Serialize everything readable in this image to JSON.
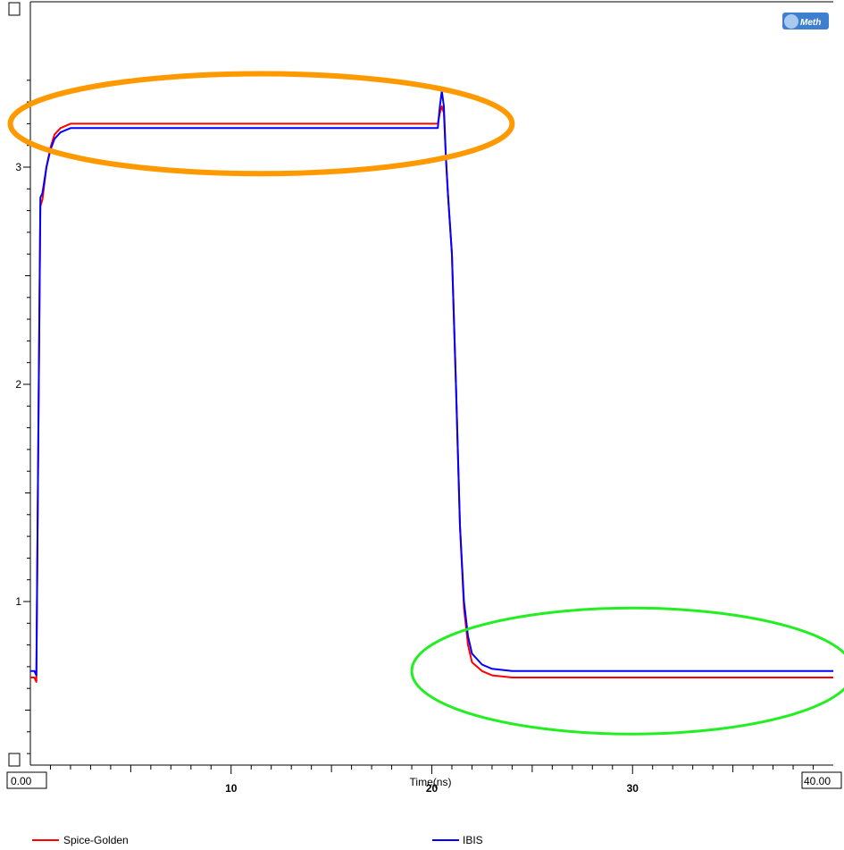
{
  "chart_data": {
    "type": "line",
    "title": "",
    "xlabel": "Time(ns)",
    "ylabel": "",
    "xlim": [
      0,
      40
    ],
    "ylim": [
      0.0,
      3.5
    ],
    "x_ticks": [
      10,
      20,
      30
    ],
    "y_ticks": [
      1,
      2,
      3
    ],
    "x_range_start": "0.00",
    "x_range_end": "40.00",
    "grid": false,
    "legend_position": "bottom",
    "series": [
      {
        "name": "Spice-Golden",
        "color": "#ff0000",
        "x": [
          0,
          0.2,
          0.3,
          0.4,
          0.5,
          0.6,
          0.8,
          1.0,
          1.2,
          1.5,
          2.0,
          3.0,
          10.0,
          20.3,
          20.4,
          20.5,
          20.6,
          20.7,
          20.8,
          21.0,
          21.2,
          21.4,
          21.6,
          21.8,
          22.0,
          22.5,
          23.0,
          24.0,
          30.0,
          40.0
        ],
        "values": [
          0.65,
          0.65,
          0.63,
          1.8,
          2.82,
          2.85,
          3.0,
          3.09,
          3.15,
          3.18,
          3.2,
          3.2,
          3.2,
          3.2,
          3.25,
          3.28,
          3.25,
          3.05,
          2.88,
          2.6,
          2.0,
          1.35,
          0.97,
          0.8,
          0.72,
          0.68,
          0.66,
          0.65,
          0.65,
          0.65
        ]
      },
      {
        "name": "IBIS",
        "color": "#0000ff",
        "x": [
          0,
          0.2,
          0.3,
          0.4,
          0.5,
          0.6,
          0.8,
          1.0,
          1.2,
          1.5,
          2.0,
          3.0,
          10.0,
          20.3,
          20.4,
          20.5,
          20.6,
          20.7,
          20.8,
          21.0,
          21.2,
          21.4,
          21.6,
          21.8,
          22.0,
          22.5,
          23.0,
          24.0,
          30.0,
          40.0
        ],
        "values": [
          0.68,
          0.68,
          0.66,
          1.8,
          2.86,
          2.88,
          3.0,
          3.08,
          3.13,
          3.16,
          3.18,
          3.18,
          3.18,
          3.18,
          3.28,
          3.35,
          3.28,
          3.05,
          2.88,
          2.6,
          2.0,
          1.35,
          1.0,
          0.84,
          0.76,
          0.71,
          0.69,
          0.68,
          0.68,
          0.68
        ]
      }
    ],
    "annotations": [
      {
        "shape": "ellipse",
        "color": "#ff9900",
        "cx": 11.5,
        "cy": 3.2,
        "rx": 12.5,
        "ry": 0.23
      },
      {
        "shape": "ellipse",
        "color": "#22ee22",
        "cx": 30.0,
        "cy": 0.68,
        "rx": 11.0,
        "ry": 0.29
      }
    ]
  },
  "logo": {
    "text": "Meth",
    "icon": "iometh-logo-icon",
    "color": "#3f7fd0"
  },
  "axis_color": "#000000",
  "background": "#ffffff"
}
